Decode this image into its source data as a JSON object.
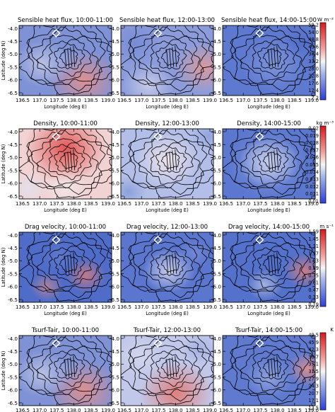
{
  "figure": {
    "xlabel": "Longitude (deg E)",
    "ylabel": "Latitude (deg N)",
    "x_ticks": [
      "136.5",
      "137.0",
      "137.5",
      "138.0",
      "138.5",
      "139.0"
    ],
    "y_ticks": [
      "-4.0",
      "-4.5",
      "-5.0",
      "-5.5",
      "-6.0",
      "-6.5"
    ]
  },
  "chart_data": [
    {
      "type": "heatmap",
      "variable": "Sensible heat flux",
      "unit": "W m⁻²",
      "colorbar_ticks": [
        "59.2",
        "54.0",
        "48.8",
        "43.6",
        "38.4",
        "33.2",
        "28.0",
        "22.8",
        "17.6",
        "12.4",
        "7.2"
      ],
      "panels": [
        {
          "title": "Sensible heat flux, 10:00-11:00",
          "pattern": "mixed_warm_se",
          "field_level": "moderate"
        },
        {
          "title": "Sensible heat flux, 12:00-13:00",
          "pattern": "mixed_warm_e",
          "field_level": "moderate"
        },
        {
          "title": "Sensible heat flux, 14:00-15:00",
          "pattern": "low_blue",
          "field_level": "low"
        }
      ]
    },
    {
      "type": "heatmap",
      "variable": "Density",
      "unit": "kg m⁻³",
      "colorbar_ticks": [
        "0.02",
        "0.019",
        "0.018",
        "0.017",
        "0.016",
        "0.015",
        "0.014",
        "0.013",
        "0.012",
        "0.011",
        "0.01"
      ],
      "panels": [
        {
          "title": "Density, 10:00-11:00",
          "pattern": "red_crater_north",
          "field_level": "high"
        },
        {
          "title": "Density, 12:00-13:00",
          "pattern": "pale_crater",
          "field_level": "moderate"
        },
        {
          "title": "Density, 14:00-15:00",
          "pattern": "pale_crater_blue_rim",
          "field_level": "low"
        }
      ]
    },
    {
      "type": "heatmap",
      "variable": "Drag velocity",
      "unit": "m s⁻¹",
      "colorbar_ticks": [
        "1.59",
        "1.45",
        "1.31",
        "1.17",
        "1.03",
        "0.89",
        "0.75",
        "0.61",
        "0.47",
        "0.33",
        "0.19"
      ],
      "panels": [
        {
          "title": "Drag velocity, 10:00-11:00",
          "pattern": "blue_with_red_patches",
          "field_level": "low"
        },
        {
          "title": "Drag velocity, 12:00-13:00",
          "pattern": "blue_pale_center",
          "field_level": "moderate"
        },
        {
          "title": "Drag velocity, 14:00-15:00",
          "pattern": "blue_with_red_e",
          "field_level": "moderate"
        }
      ]
    },
    {
      "type": "heatmap",
      "variable": "Tsurf-Tair",
      "unit": "K",
      "colorbar_ticks": [
        "49.5",
        "45.9",
        "42.3",
        "38.7",
        "35.1",
        "31.5",
        "27.9",
        "24.3",
        "20.7",
        "17.1",
        "13.5"
      ],
      "panels": [
        {
          "title": "Tsurf-Tair, 10:00-11:00",
          "pattern": "mixed_warm_se",
          "field_level": "moderate"
        },
        {
          "title": "Tsurf-Tair, 12:00-13:00",
          "pattern": "warm_south",
          "field_level": "high"
        },
        {
          "title": "Tsurf-Tair, 14:00-15:00",
          "pattern": "blue_red_e",
          "field_level": "low"
        }
      ]
    }
  ]
}
